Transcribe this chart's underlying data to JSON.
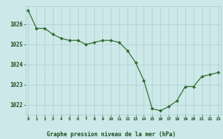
{
  "x": [
    0,
    1,
    2,
    3,
    4,
    5,
    6,
    7,
    8,
    9,
    10,
    11,
    12,
    13,
    14,
    15,
    16,
    17,
    18,
    19,
    20,
    21,
    22,
    23
  ],
  "y": [
    1026.7,
    1025.8,
    1025.8,
    1025.5,
    1025.3,
    1025.2,
    1025.2,
    1025.0,
    1025.1,
    1025.2,
    1025.2,
    1025.1,
    1024.7,
    1024.1,
    1023.2,
    1021.8,
    1021.7,
    1021.9,
    1022.2,
    1022.9,
    1022.9,
    1023.4,
    1023.5,
    1023.6
  ],
  "line_color": "#2d6a2d",
  "marker_color": "#2d6a2d",
  "bg_color": "#cce8e8",
  "grid_color": "#aacccc",
  "xlabel": "Graphe pression niveau de la mer (hPa)",
  "xlabel_color": "#1a4a1a",
  "tick_color": "#1a4a1a",
  "ylim": [
    1021.5,
    1026.9
  ],
  "yticks": [
    1022,
    1023,
    1024,
    1025,
    1026
  ],
  "xticks": [
    0,
    1,
    2,
    3,
    4,
    5,
    6,
    7,
    8,
    9,
    10,
    11,
    12,
    13,
    14,
    15,
    16,
    17,
    18,
    19,
    20,
    21,
    22,
    23
  ],
  "xlim": [
    -0.3,
    23.3
  ]
}
